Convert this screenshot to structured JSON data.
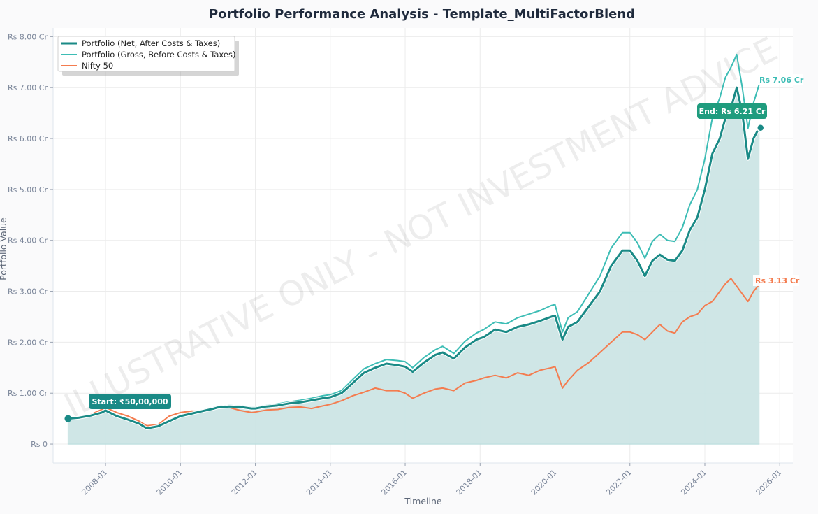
{
  "chart_data": {
    "type": "line",
    "title": "Portfolio Performance Analysis - Template_MultiFactorBlend",
    "xlabel": "Timeline",
    "ylabel": "Portfolio Value",
    "xlim": [
      2006.6,
      2026.35
    ],
    "ylim": [
      -0.37,
      8.17
    ],
    "grid": true,
    "legend_position": "top-left",
    "watermark": "ILLUSTRATIVE ONLY - NOT INVESTMENT ADVICE",
    "y_ticks": [
      {
        "value": 0,
        "label": "Rs 0"
      },
      {
        "value": 1,
        "label": "Rs 1.00 Cr"
      },
      {
        "value": 2,
        "label": "Rs 2.00 Cr"
      },
      {
        "value": 3,
        "label": "Rs 3.00 Cr"
      },
      {
        "value": 4,
        "label": "Rs 4.00 Cr"
      },
      {
        "value": 5,
        "label": "Rs 5.00 Cr"
      },
      {
        "value": 6,
        "label": "Rs 6.00 Cr"
      },
      {
        "value": 7,
        "label": "Rs 7.00 Cr"
      },
      {
        "value": 8,
        "label": "Rs 8.00 Cr"
      }
    ],
    "x_ticks": [
      {
        "value": 2008,
        "label": "2008-01"
      },
      {
        "value": 2010,
        "label": "2010-01"
      },
      {
        "value": 2012,
        "label": "2012-01"
      },
      {
        "value": 2014,
        "label": "2014-01"
      },
      {
        "value": 2016,
        "label": "2016-01"
      },
      {
        "value": 2018,
        "label": "2018-01"
      },
      {
        "value": 2020,
        "label": "2020-01"
      },
      {
        "value": 2022,
        "label": "2022-01"
      },
      {
        "value": 2024,
        "label": "2024-01"
      },
      {
        "value": 2026,
        "label": "2026-01"
      }
    ],
    "x": [
      2007.0,
      2007.3,
      2007.6,
      2007.9,
      2008.0,
      2008.3,
      2008.6,
      2008.9,
      2009.1,
      2009.4,
      2009.7,
      2010.0,
      2010.3,
      2010.6,
      2010.9,
      2011.0,
      2011.3,
      2011.6,
      2011.9,
      2012.0,
      2012.3,
      2012.6,
      2012.9,
      2013.2,
      2013.5,
      2013.8,
      2014.0,
      2014.3,
      2014.6,
      2014.9,
      2015.2,
      2015.5,
      2015.8,
      2016.0,
      2016.2,
      2016.5,
      2016.8,
      2017.0,
      2017.3,
      2017.6,
      2017.9,
      2018.1,
      2018.4,
      2018.7,
      2019.0,
      2019.3,
      2019.6,
      2019.9,
      2020.0,
      2020.2,
      2020.35,
      2020.6,
      2020.9,
      2021.2,
      2021.5,
      2021.8,
      2022.0,
      2022.2,
      2022.4,
      2022.6,
      2022.8,
      2023.0,
      2023.2,
      2023.4,
      2023.6,
      2023.8,
      2024.0,
      2024.2,
      2024.4,
      2024.55,
      2024.7,
      2024.85,
      2025.0,
      2025.15,
      2025.3,
      2025.45
    ],
    "series": [
      {
        "name": "Portfolio (Net, After Costs & Taxes)",
        "color": "#1a8a86",
        "values": [
          0.5,
          0.52,
          0.56,
          0.62,
          0.66,
          0.55,
          0.48,
          0.4,
          0.31,
          0.35,
          0.45,
          0.55,
          0.6,
          0.65,
          0.7,
          0.72,
          0.74,
          0.73,
          0.7,
          0.7,
          0.74,
          0.76,
          0.8,
          0.82,
          0.86,
          0.9,
          0.92,
          1.0,
          1.2,
          1.4,
          1.5,
          1.58,
          1.55,
          1.52,
          1.42,
          1.6,
          1.75,
          1.8,
          1.68,
          1.9,
          2.05,
          2.1,
          2.25,
          2.2,
          2.3,
          2.35,
          2.42,
          2.5,
          2.52,
          2.05,
          2.3,
          2.4,
          2.7,
          3.0,
          3.5,
          3.8,
          3.8,
          3.6,
          3.3,
          3.6,
          3.72,
          3.62,
          3.6,
          3.8,
          4.2,
          4.45,
          5.0,
          5.7,
          6.0,
          6.4,
          6.6,
          7.0,
          6.5,
          5.6,
          6.0,
          6.21
        ]
      },
      {
        "name": "Portfolio (Gross, Before Costs & Taxes)",
        "color": "#3dbdb5",
        "values": [
          0.5,
          0.53,
          0.57,
          0.64,
          0.68,
          0.57,
          0.5,
          0.42,
          0.32,
          0.37,
          0.47,
          0.57,
          0.62,
          0.67,
          0.72,
          0.74,
          0.76,
          0.75,
          0.72,
          0.72,
          0.76,
          0.79,
          0.83,
          0.86,
          0.9,
          0.95,
          0.97,
          1.05,
          1.27,
          1.48,
          1.58,
          1.66,
          1.64,
          1.62,
          1.5,
          1.7,
          1.85,
          1.92,
          1.78,
          2.02,
          2.18,
          2.25,
          2.4,
          2.36,
          2.48,
          2.55,
          2.62,
          2.72,
          2.74,
          2.2,
          2.48,
          2.6,
          2.95,
          3.3,
          3.85,
          4.15,
          4.15,
          3.95,
          3.65,
          3.98,
          4.12,
          4.0,
          3.98,
          4.25,
          4.7,
          5.0,
          5.6,
          6.4,
          6.8,
          7.2,
          7.4,
          7.65,
          7.0,
          6.2,
          6.7,
          7.06
        ]
      },
      {
        "name": "Nifty 50",
        "color": "#f47c4f",
        "values": [
          0.5,
          0.53,
          0.58,
          0.68,
          0.72,
          0.62,
          0.55,
          0.45,
          0.36,
          0.38,
          0.55,
          0.62,
          0.65,
          0.64,
          0.7,
          0.74,
          0.72,
          0.66,
          0.62,
          0.63,
          0.67,
          0.68,
          0.72,
          0.73,
          0.7,
          0.75,
          0.78,
          0.85,
          0.95,
          1.02,
          1.1,
          1.05,
          1.05,
          1.0,
          0.9,
          1.0,
          1.08,
          1.1,
          1.05,
          1.2,
          1.25,
          1.3,
          1.35,
          1.3,
          1.4,
          1.35,
          1.45,
          1.5,
          1.52,
          1.1,
          1.25,
          1.45,
          1.6,
          1.8,
          2.0,
          2.2,
          2.2,
          2.15,
          2.05,
          2.2,
          2.35,
          2.22,
          2.18,
          2.4,
          2.5,
          2.55,
          2.72,
          2.8,
          3.0,
          3.15,
          3.25,
          3.1,
          2.95,
          2.8,
          3.0,
          3.13
        ]
      }
    ],
    "annotations": {
      "start": "Start: ₹50,00,000",
      "end": "End: Rs 6.21 Cr",
      "gross_end": "Rs 7.06 Cr",
      "nifty_end": "Rs 3.13 Cr"
    },
    "colors": {
      "net": "#1a8a86",
      "gross": "#3dbdb5",
      "nifty": "#f47c4f",
      "fill": "#cce5e5",
      "end_badge": "#1f9c7e",
      "start_badge": "#1a8a86"
    }
  }
}
